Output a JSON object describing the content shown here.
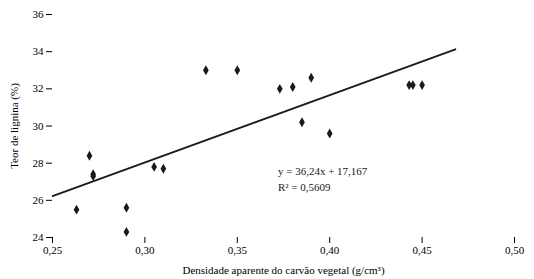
{
  "chart_data": {
    "type": "scatter",
    "xlabel": "Densidade aparente do carvão vegetal (g/cm³)",
    "ylabel": "Teor de lignina (%)",
    "xlim": [
      0.25,
      0.5
    ],
    "ylim": [
      24,
      36
    ],
    "xticks": [
      {
        "value": 0.25,
        "label": "0,25"
      },
      {
        "value": 0.3,
        "label": "0,30"
      },
      {
        "value": 0.35,
        "label": "0,35"
      },
      {
        "value": 0.4,
        "label": "0,40"
      },
      {
        "value": 0.45,
        "label": "0,45"
      },
      {
        "value": 0.5,
        "label": "0,50"
      }
    ],
    "yticks": [
      24,
      26,
      28,
      30,
      32,
      34,
      36
    ],
    "grid": false,
    "series": [
      {
        "type": "scatter",
        "color": "#1a1a1a",
        "marker": "diamond",
        "x": [
          0.263,
          0.27,
          0.272,
          0.272,
          0.29,
          0.29,
          0.305,
          0.31,
          0.333,
          0.35,
          0.373,
          0.38,
          0.385,
          0.39,
          0.4,
          0.443,
          0.445,
          0.45
        ],
        "values": [
          25.5,
          28.4,
          27.3,
          27.4,
          25.6,
          24.3,
          27.8,
          27.7,
          33.0,
          33.0,
          32.0,
          32.1,
          30.2,
          32.6,
          29.6,
          32.2,
          32.2,
          32.2
        ]
      },
      {
        "type": "line",
        "color": "#1a1a1a",
        "line_style": "solid",
        "x": [
          0.25,
          0.468
        ],
        "values": [
          26.227,
          34.12732
        ]
      }
    ],
    "annotations": [
      {
        "text": "y = 36,24x + 17,167\nR² = 0,5609",
        "x": 0.372,
        "y": 28.0,
        "color": "#1a1a1a"
      }
    ]
  }
}
